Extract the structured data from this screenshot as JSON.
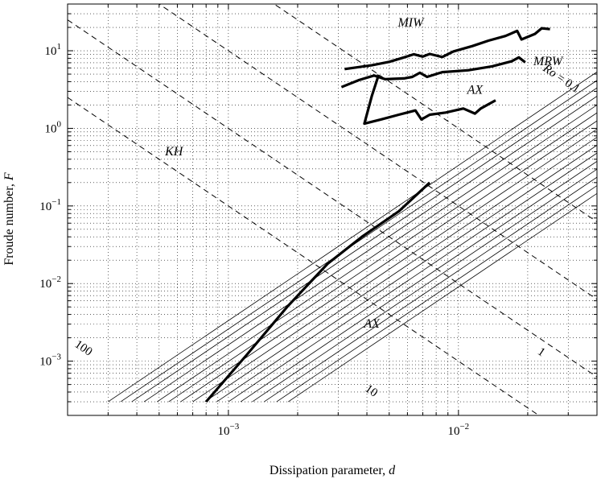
{
  "chart_data": {
    "type": "line",
    "xlabel_text": "Dissipation parameter, ",
    "xlabel_var": "d",
    "ylabel_text": "Froude number, ",
    "ylabel_var": "F",
    "x_scale": "log",
    "y_scale": "log",
    "xlim": [
      0.0002,
      0.04
    ],
    "ylim": [
      0.0002,
      40
    ],
    "grid": true,
    "x_ticks": [
      {
        "value": 0.001,
        "base": "10",
        "exp": "−3"
      },
      {
        "value": 0.01,
        "base": "10",
        "exp": "−2"
      }
    ],
    "y_ticks": [
      {
        "value": 0.001,
        "base": "10",
        "exp": "−3"
      },
      {
        "value": 0.01,
        "base": "10",
        "exp": "−2"
      },
      {
        "value": 0.1,
        "base": "10",
        "exp": "−1"
      },
      {
        "value": 1,
        "base": "10",
        "exp": "0"
      },
      {
        "value": 10,
        "base": "10",
        "exp": "1"
      }
    ],
    "ro_lines": [
      {
        "ro": 100,
        "label": "100",
        "label_at": [
          0.00023,
          0.00135
        ]
      },
      {
        "ro": 10,
        "label": "10",
        "label_at": [
          0.0041,
          0.00038
        ]
      },
      {
        "ro": 1,
        "label": "1",
        "label_at": [
          0.0225,
          0.0012
        ]
      },
      {
        "ro": 0.1,
        "label": "Ro = 0.1",
        "label_at": [
          0.0275,
          4.0
        ]
      }
    ],
    "parallel_lines": {
      "d_at_F_0_0003": [
        0.0003,
        0.00034,
        0.00038,
        0.00043,
        0.00049,
        0.00055,
        0.00062,
        0.0007,
        0.00079,
        0.00089,
        0.001,
        0.00113,
        0.00127,
        0.00143,
        0.00162,
        0.00182
      ],
      "F_min": 0.0003,
      "F_max": 35
    },
    "boundaries": [
      {
        "name": "axisymmetric-limit",
        "points": [
          [
            0.0008,
            0.0003
          ],
          [
            0.0012,
            0.0012
          ],
          [
            0.0018,
            0.005
          ],
          [
            0.0027,
            0.018
          ],
          [
            0.0038,
            0.04
          ],
          [
            0.0055,
            0.085
          ],
          [
            0.0075,
            0.2
          ]
        ]
      },
      {
        "name": "miw-boundary",
        "points": [
          [
            0.0032,
            5.8
          ],
          [
            0.0042,
            6.5
          ],
          [
            0.005,
            7.2
          ],
          [
            0.0058,
            8.2
          ],
          [
            0.0064,
            9.0
          ],
          [
            0.007,
            8.4
          ],
          [
            0.0075,
            9.1
          ],
          [
            0.0085,
            8.3
          ],
          [
            0.0095,
            9.8
          ],
          [
            0.0115,
            11.5
          ],
          [
            0.0135,
            13.5
          ],
          [
            0.016,
            15.5
          ],
          [
            0.018,
            18.0
          ],
          [
            0.0188,
            14.0
          ],
          [
            0.0215,
            16.5
          ],
          [
            0.023,
            19.5
          ],
          [
            0.025,
            19.0
          ]
        ]
      },
      {
        "name": "mrw-boundary",
        "points": [
          [
            0.0031,
            3.4
          ],
          [
            0.0037,
            4.2
          ],
          [
            0.0043,
            4.8
          ],
          [
            0.0048,
            4.3
          ],
          [
            0.0058,
            4.4
          ],
          [
            0.0063,
            4.6
          ],
          [
            0.0068,
            5.2
          ],
          [
            0.0073,
            4.6
          ],
          [
            0.0085,
            5.3
          ],
          [
            0.011,
            5.6
          ],
          [
            0.014,
            6.3
          ],
          [
            0.017,
            7.3
          ],
          [
            0.0183,
            8.2
          ],
          [
            0.0195,
            7.1
          ]
        ]
      },
      {
        "name": "ax-upper-boundary",
        "points": [
          [
            0.0045,
            4.9
          ],
          [
            0.0042,
            2.6
          ],
          [
            0.0039,
            1.15
          ],
          [
            0.0046,
            1.3
          ],
          [
            0.0055,
            1.5
          ],
          [
            0.0065,
            1.7
          ],
          [
            0.0069,
            1.3
          ],
          [
            0.0075,
            1.5
          ],
          [
            0.0088,
            1.6
          ],
          [
            0.0105,
            1.8
          ],
          [
            0.0118,
            1.55
          ],
          [
            0.0125,
            1.8
          ],
          [
            0.0145,
            2.3
          ]
        ]
      }
    ],
    "region_labels": [
      {
        "text": "MIW",
        "at": [
          0.0062,
          20.5
        ]
      },
      {
        "text": "MRW",
        "at": [
          0.0245,
          6.5
        ]
      },
      {
        "text": "AX",
        "at": [
          0.0118,
          2.8
        ]
      },
      {
        "text": "KH",
        "at": [
          0.00058,
          0.45
        ]
      },
      {
        "text": "AX",
        "at": [
          0.0042,
          0.0027
        ]
      }
    ]
  }
}
